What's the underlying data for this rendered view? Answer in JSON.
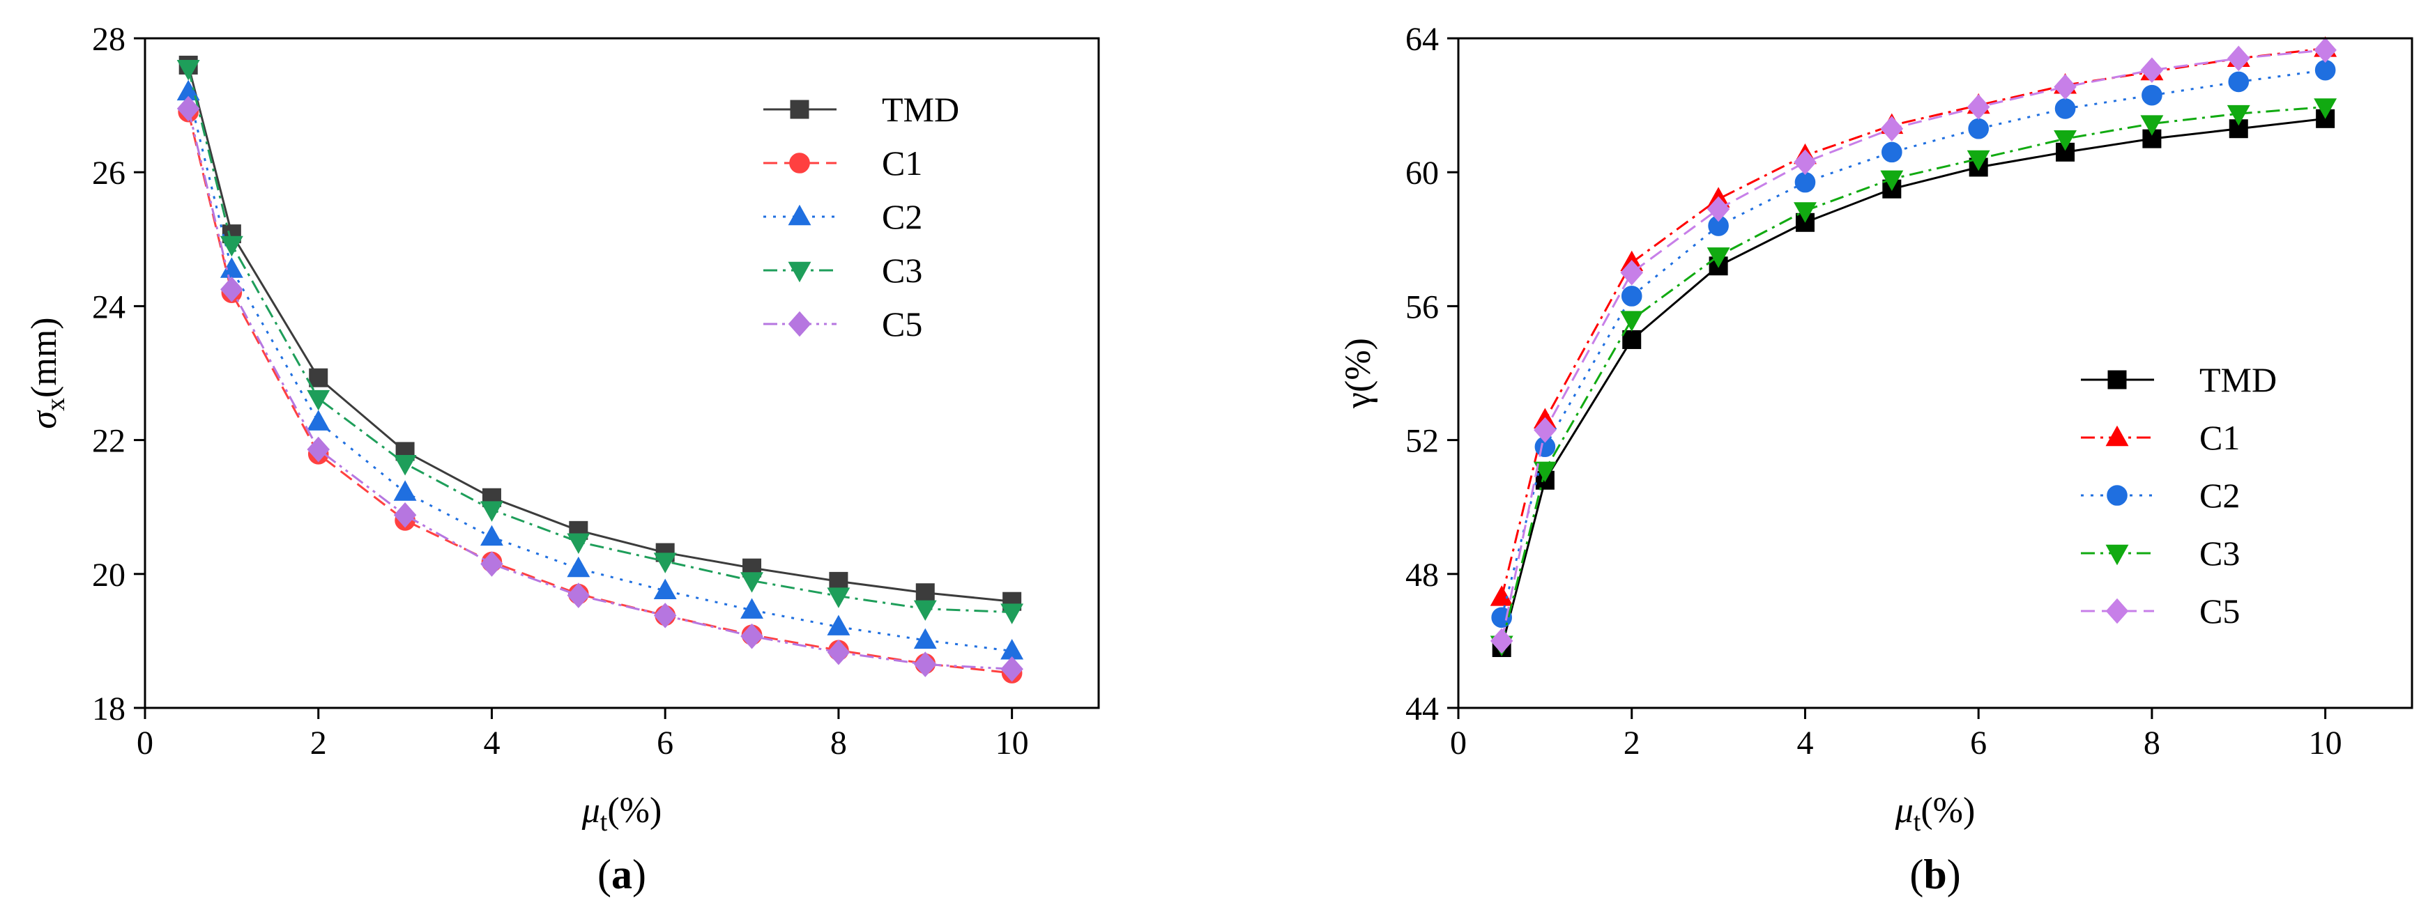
{
  "chart_data": [
    {
      "type": "line",
      "panel_label": {
        "open": "(",
        "letter": "a",
        "close": ")"
      },
      "x": [
        0.5,
        1,
        2,
        3,
        4,
        5,
        6,
        7,
        8,
        9,
        10
      ],
      "xlim": [
        0,
        11
      ],
      "ylim": [
        18,
        28
      ],
      "xticks": [
        0,
        2,
        4,
        6,
        8,
        10
      ],
      "yticks": [
        18,
        20,
        22,
        24,
        26,
        28
      ],
      "xlabel": {
        "symbol": "μ",
        "sub": "t",
        "unit": "(%)"
      },
      "ylabel": {
        "symbol": "σ",
        "sub": "x",
        "unit": "(mm)"
      },
      "legend_position": "top-right",
      "series": [
        {
          "name": "TMD",
          "color": "#3c3c3c",
          "marker": "square",
          "dash": "solid",
          "values": [
            27.6,
            25.08,
            22.93,
            21.83,
            21.14,
            20.65,
            20.32,
            20.09,
            19.89,
            19.72,
            19.59
          ]
        },
        {
          "name": "C1",
          "color": "#ff4040",
          "marker": "circle",
          "dash": "dashed",
          "values": [
            26.9,
            24.2,
            21.79,
            20.8,
            20.18,
            19.7,
            19.38,
            19.09,
            18.86,
            18.66,
            18.52
          ]
        },
        {
          "name": "C2",
          "color": "#1f6fe0",
          "marker": "triangle-up",
          "dash": "dotted",
          "values": [
            27.2,
            24.55,
            22.27,
            21.22,
            20.55,
            20.08,
            19.75,
            19.46,
            19.21,
            19.01,
            18.85
          ]
        },
        {
          "name": "C3",
          "color": "#1e9e5a",
          "marker": "triangle-down",
          "dash": "dashdot",
          "values": [
            27.55,
            24.92,
            22.62,
            21.65,
            20.96,
            20.48,
            20.19,
            19.9,
            19.67,
            19.48,
            19.43
          ]
        },
        {
          "name": "C5",
          "color": "#b676e0",
          "marker": "diamond",
          "dash": "dashdotdot",
          "values": [
            26.95,
            24.25,
            21.86,
            20.88,
            20.15,
            19.68,
            19.38,
            19.07,
            18.83,
            18.65,
            18.58
          ]
        }
      ]
    },
    {
      "type": "line",
      "panel_label": {
        "open": "(",
        "letter": "b",
        "close": ")"
      },
      "x": [
        0.5,
        1,
        2,
        3,
        4,
        5,
        6,
        7,
        8,
        9,
        10
      ],
      "xlim": [
        0,
        11
      ],
      "ylim": [
        44,
        64
      ],
      "xticks": [
        0,
        2,
        4,
        6,
        8,
        10
      ],
      "yticks": [
        44,
        48,
        52,
        56,
        60,
        64
      ],
      "xlabel": {
        "symbol": "μ",
        "sub": "t",
        "unit": "(%)"
      },
      "ylabel": {
        "symbol": "γ",
        "sub": "",
        "unit": "(%)"
      },
      "legend_position": "center-right",
      "series": [
        {
          "name": "TMD",
          "color": "#000000",
          "marker": "square",
          "dash": "solid",
          "values": [
            45.8,
            50.8,
            55.0,
            57.2,
            58.5,
            59.5,
            60.15,
            60.6,
            61.0,
            61.3,
            61.6
          ]
        },
        {
          "name": "C1",
          "color": "#ff0000",
          "marker": "triangle-up",
          "dash": "dashdot",
          "values": [
            47.3,
            52.6,
            57.3,
            59.2,
            60.5,
            61.4,
            62.0,
            62.6,
            63.0,
            63.4,
            63.7
          ]
        },
        {
          "name": "C2",
          "color": "#1f6fe0",
          "marker": "circle",
          "dash": "dotted",
          "values": [
            46.7,
            51.8,
            56.3,
            58.4,
            59.7,
            60.6,
            61.3,
            61.9,
            62.3,
            62.7,
            63.05
          ]
        },
        {
          "name": "C3",
          "color": "#11aa11",
          "marker": "triangle-down",
          "dash": "dashdot",
          "values": [
            45.9,
            51.1,
            55.6,
            57.5,
            58.85,
            59.8,
            60.4,
            61.0,
            61.45,
            61.75,
            61.95
          ]
        },
        {
          "name": "C5",
          "color": "#c77fe8",
          "marker": "diamond",
          "dash": "dashed",
          "values": [
            46.0,
            52.3,
            57.0,
            58.9,
            60.3,
            61.3,
            61.95,
            62.55,
            63.05,
            63.4,
            63.65
          ]
        }
      ]
    }
  ]
}
